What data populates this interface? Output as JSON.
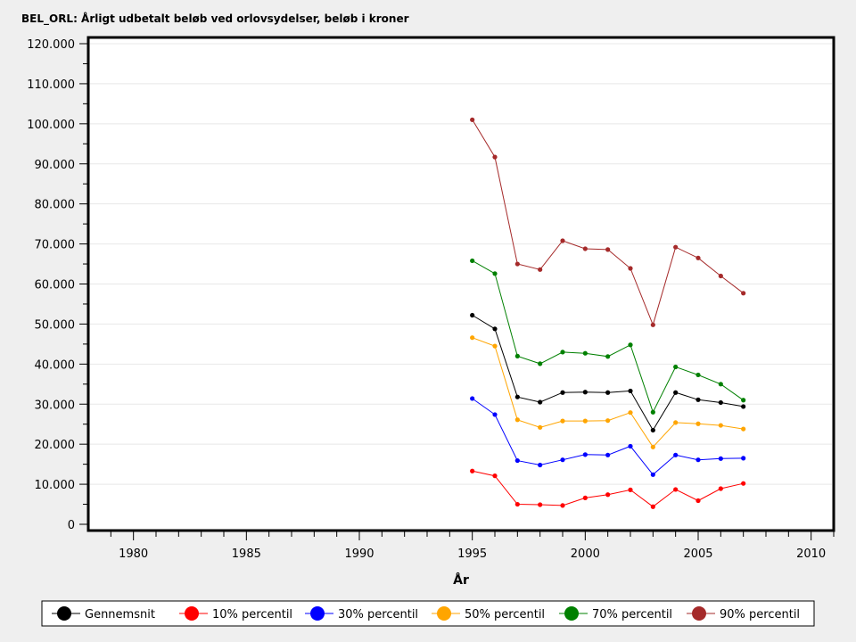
{
  "chart_data": {
    "type": "line",
    "title": "BEL_ORL: Årligt udbetalt beløb ved orlovsydelser, beløb i kroner",
    "xlabel": "År",
    "ylabel": "",
    "xlim": [
      1978,
      2011
    ],
    "ylim": [
      0,
      120000
    ],
    "x_ticks": [
      1980,
      1985,
      1990,
      1995,
      2000,
      2005,
      2010
    ],
    "x_tick_labels": [
      "1980",
      "1985",
      "1990",
      "1995",
      "2000",
      "2005",
      "2010"
    ],
    "y_ticks": [
      0,
      10000,
      20000,
      30000,
      40000,
      50000,
      60000,
      70000,
      80000,
      90000,
      100000,
      110000,
      120000
    ],
    "y_tick_labels": [
      "0",
      "10.000",
      "20.000",
      "30.000",
      "40.000",
      "50.000",
      "60.000",
      "70.000",
      "80.000",
      "90.000",
      "100.000",
      "110.000",
      "120.000"
    ],
    "grid": true,
    "legend_position": "bottom",
    "x": [
      1995,
      1996,
      1997,
      1998,
      1999,
      2000,
      2001,
      2002,
      2003,
      2004,
      2005,
      2006,
      2007
    ],
    "series": [
      {
        "name": "Gennemsnit",
        "color": "#000000",
        "values": [
          52200,
          48800,
          31800,
          30500,
          32900,
          33000,
          32900,
          33300,
          23500,
          32900,
          31100,
          30400,
          29400
        ]
      },
      {
        "name": "10% percentil",
        "color": "#ff0000",
        "values": [
          13300,
          12100,
          5000,
          4900,
          4700,
          6600,
          7400,
          8600,
          4400,
          8700,
          5900,
          8900,
          10200
        ]
      },
      {
        "name": "30% percentil",
        "color": "#0000ff",
        "values": [
          31400,
          27400,
          15900,
          14800,
          16100,
          17400,
          17300,
          19500,
          12400,
          17300,
          16100,
          16400,
          16500
        ]
      },
      {
        "name": "50% percentil",
        "color": "#ffa500",
        "values": [
          46600,
          44500,
          26100,
          24200,
          25800,
          25800,
          25900,
          27900,
          19300,
          25400,
          25100,
          24700,
          23800
        ]
      },
      {
        "name": "70% percentil",
        "color": "#008000",
        "values": [
          65800,
          62600,
          42000,
          40100,
          43000,
          42700,
          41900,
          44800,
          28000,
          39300,
          37300,
          35000,
          31000
        ]
      },
      {
        "name": "90% percentil",
        "color": "#a52a2a",
        "values": [
          101000,
          91700,
          65000,
          63600,
          70800,
          68800,
          68600,
          63900,
          49800,
          69200,
          66500,
          62000,
          57700
        ]
      }
    ]
  }
}
